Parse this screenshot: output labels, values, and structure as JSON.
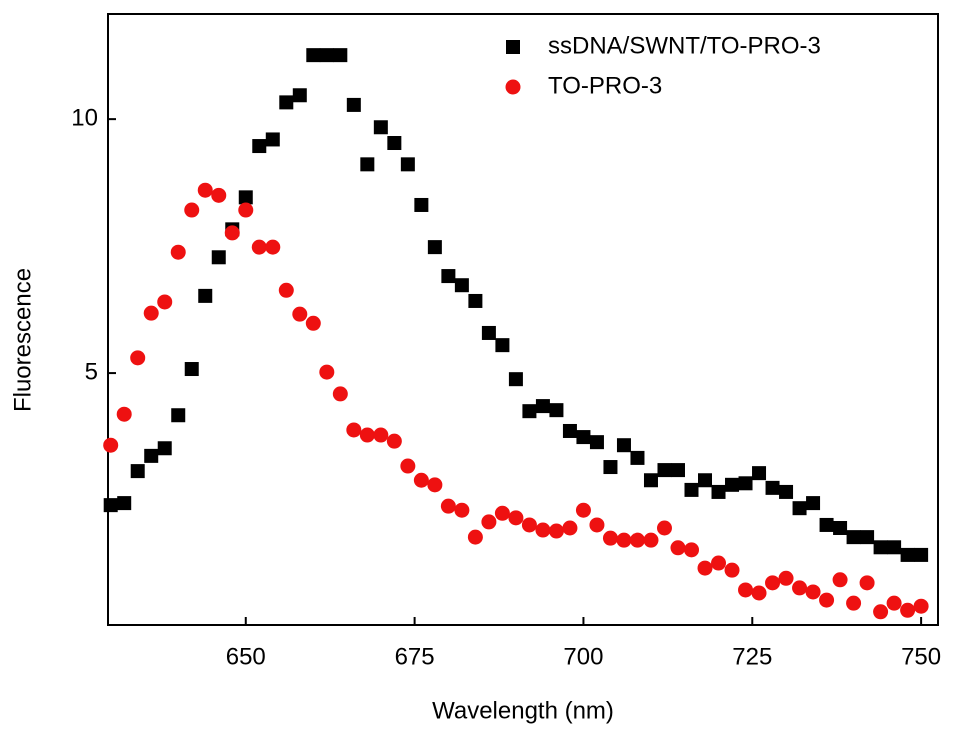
{
  "chart_data": {
    "type": "scatter",
    "x_label": "Wavelength (nm)",
    "y_label": "Fluorescence",
    "x": [
      630,
      632,
      634,
      636,
      638,
      640,
      642,
      644,
      646,
      648,
      650,
      652,
      654,
      656,
      658,
      660,
      662,
      664,
      666,
      668,
      670,
      672,
      674,
      676,
      678,
      680,
      682,
      684,
      686,
      688,
      690,
      692,
      694,
      696,
      698,
      700,
      702,
      704,
      706,
      708,
      710,
      712,
      714,
      716,
      718,
      720,
      722,
      724,
      726,
      728,
      730,
      732,
      734,
      736,
      738,
      740,
      742,
      744,
      746,
      748,
      750
    ],
    "series": [
      {
        "name": "ssDNA/SWNT/TO-PRO-3",
        "color": "#000000",
        "marker": "square",
        "values": [
          2.4,
          2.44,
          3.07,
          3.37,
          3.52,
          4.17,
          5.08,
          6.52,
          7.28,
          7.83,
          8.46,
          9.47,
          9.6,
          10.33,
          10.47,
          11.26,
          11.26,
          11.26,
          10.28,
          9.11,
          9.84,
          9.53,
          9.11,
          8.31,
          7.48,
          6.91,
          6.73,
          6.42,
          5.79,
          5.55,
          4.88,
          4.25,
          4.35,
          4.27,
          3.86,
          3.74,
          3.64,
          3.15,
          3.58,
          3.33,
          2.89,
          3.09,
          3.09,
          2.7,
          2.89,
          2.66,
          2.8,
          2.83,
          3.03,
          2.74,
          2.66,
          2.34,
          2.44,
          2.01,
          1.95,
          1.77,
          1.77,
          1.57,
          1.57,
          1.42,
          1.42
        ]
      },
      {
        "name": "TO-PRO-3",
        "color": "#ee1111",
        "marker": "circle",
        "values": [
          3.58,
          4.19,
          5.3,
          6.18,
          6.4,
          7.38,
          8.21,
          8.6,
          8.5,
          7.76,
          8.21,
          7.48,
          7.48,
          6.63,
          6.16,
          5.98,
          5.02,
          4.59,
          3.88,
          3.78,
          3.78,
          3.66,
          3.17,
          2.89,
          2.8,
          2.38,
          2.3,
          1.77,
          2.07,
          2.24,
          2.15,
          2.01,
          1.91,
          1.89,
          1.95,
          2.3,
          2.01,
          1.75,
          1.71,
          1.71,
          1.71,
          1.95,
          1.56,
          1.52,
          1.16,
          1.26,
          1.12,
          0.73,
          0.67,
          0.87,
          0.96,
          0.77,
          0.69,
          0.53,
          0.93,
          0.47,
          0.87,
          0.3,
          0.47,
          0.33,
          0.41
        ]
      }
    ],
    "xlim": [
      629.6,
      752.5
    ],
    "xticks": [
      650,
      675,
      700,
      725,
      750
    ],
    "ylim": [
      0.04,
      12.07
    ],
    "yticks": [
      5,
      10
    ],
    "legend": "top-right"
  }
}
